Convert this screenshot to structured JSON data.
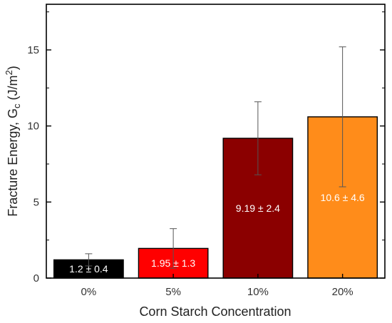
{
  "chart_data": {
    "type": "bar",
    "categories": [
      "0%",
      "5%",
      "10%",
      "20%"
    ],
    "values": [
      1.2,
      1.95,
      9.19,
      10.6
    ],
    "errors": [
      0.4,
      1.3,
      2.4,
      4.6
    ],
    "data_labels": [
      "1.2 ± 0.4",
      "1.95 ± 1.3",
      "9.19 ± 2.4",
      "10.6 ± 4.6"
    ],
    "bar_colors": [
      "#000000",
      "#ff0000",
      "#8b0000",
      "#ff8c1a"
    ],
    "xlabel": "Corn Starch Concentration",
    "ylabel": "Fracture Energy, G",
    "ylabel_sub": "c",
    "ylabel_units": " (J/m",
    "ylabel_sup": "2",
    "ylabel_close": ")",
    "ylim": [
      0,
      18
    ],
    "yticks": [
      0,
      5,
      10,
      15
    ],
    "grid": false,
    "legend": "none"
  }
}
